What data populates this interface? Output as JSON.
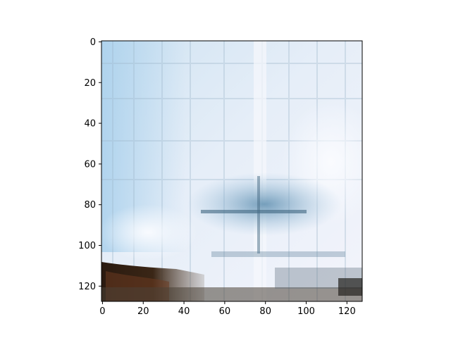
{
  "image_plot": {
    "content": "Blurry generated image: pale blue-white sky with faint grid artifacts, darker blue horizontal band near the middle-right, dark brown/black ground strip at lower-left and a dark strip along the bottom.",
    "x_axis": {
      "range": [
        0,
        127
      ],
      "ticks": [
        {
          "value": 0,
          "label": "0"
        },
        {
          "value": 20,
          "label": "20"
        },
        {
          "value": 40,
          "label": "40"
        },
        {
          "value": 60,
          "label": "60"
        },
        {
          "value": 80,
          "label": "80"
        },
        {
          "value": 100,
          "label": "100"
        },
        {
          "value": 120,
          "label": "120"
        }
      ]
    },
    "y_axis": {
      "range": [
        0,
        127
      ],
      "inverted": true,
      "ticks": [
        {
          "value": 0,
          "label": "0"
        },
        {
          "value": 20,
          "label": "20"
        },
        {
          "value": 40,
          "label": "40"
        },
        {
          "value": 60,
          "label": "60"
        },
        {
          "value": 80,
          "label": "80"
        },
        {
          "value": 100,
          "label": "100"
        },
        {
          "value": 120,
          "label": "120"
        }
      ]
    },
    "colors": {
      "sky_light": "#eef3fa",
      "sky_blue": "#bfdcf0",
      "band_blue": "#6f9fbe",
      "ground_dark": "#2a1a10",
      "ground_brown": "#7a4a2a",
      "axis": "#000000"
    }
  }
}
